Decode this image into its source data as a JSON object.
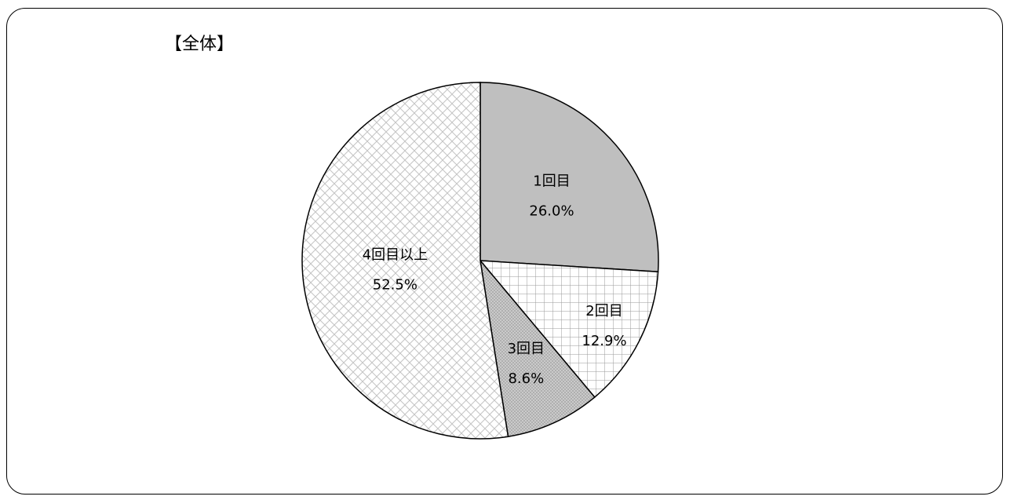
{
  "chart_data": {
    "type": "pie",
    "title": "【全体】",
    "start_angle_deg": 0,
    "direction": "clockwise",
    "slices": [
      {
        "label": "1回目",
        "value": 26.0,
        "value_label": "26.0%",
        "fill": "#bfbfbf",
        "pattern": "solid"
      },
      {
        "label": "2回目",
        "value": 12.9,
        "value_label": "12.9%",
        "fill": "#ffffff",
        "pattern": "grid"
      },
      {
        "label": "3回目",
        "value": 8.6,
        "value_label": "8.6%",
        "fill": "#d9d9d9",
        "pattern": "fine-dots"
      },
      {
        "label": "4回目以上",
        "value": 52.5,
        "value_label": "52.5%",
        "fill": "#ffffff",
        "pattern": "diagonal-cross"
      }
    ]
  }
}
